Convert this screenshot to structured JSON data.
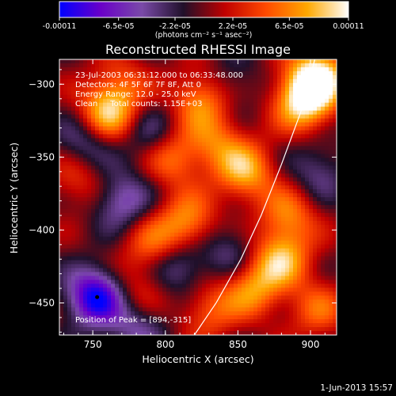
{
  "chart_data": {
    "type": "heatmap",
    "title": "Reconstructed RHESSI Image",
    "xlabel": "Heliocentric X (arcsec)",
    "ylabel": "Heliocentric Y (arcsec)",
    "xlim": [
      727,
      918
    ],
    "ylim": [
      -472,
      -283
    ],
    "x_ticks": [
      750,
      800,
      850,
      900
    ],
    "y_ticks": [
      -300,
      -350,
      -400,
      -450
    ],
    "colorbar": {
      "min": -0.00011,
      "max": 0.00011,
      "tick_labels": [
        "-0.00011",
        "-6.5e-05",
        "-2.2e-05",
        "2.2e-05",
        "6.5e-05",
        "0.00011"
      ],
      "unit_label": "(photons cm⁻² s⁻¹ asec⁻²)",
      "colormap": [
        "#0000ff",
        "#6a00c8",
        "#7a4aa8",
        "#20102a",
        "#c00000",
        "#ff4a00",
        "#ffa800",
        "#ffffff"
      ]
    },
    "annotations": [
      "23-Jul-2003 06:31:12.000 to 06:33:48.000",
      "Detectors: 4F 5F 6F 7F 8F, Att 0",
      "Energy Range: 12.0 - 25.0 keV",
      "Clean     Total counts: 1.15E+03"
    ],
    "peak_label": "Position of Peak = [894,-315]",
    "peak_position": [
      894,
      -315
    ],
    "marker": {
      "x": 753,
      "y": -446
    },
    "limb_curve": [
      [
        903,
        -283
      ],
      [
        893,
        -320
      ],
      [
        880,
        -355
      ],
      [
        866,
        -390
      ],
      [
        852,
        -420
      ],
      [
        835,
        -450
      ],
      [
        820,
        -472
      ]
    ],
    "bright_sources": [
      {
        "x": 905,
        "y": -295,
        "value": 0.00011
      },
      {
        "x": 895,
        "y": -312,
        "value": 0.0001
      },
      {
        "x": 760,
        "y": -320,
        "value": 9e-05
      },
      {
        "x": 855,
        "y": -360,
        "value": 8e-05
      },
      {
        "x": 825,
        "y": -310,
        "value": 7e-05
      },
      {
        "x": 880,
        "y": -420,
        "value": 8e-05
      },
      {
        "x": 860,
        "y": -440,
        "value": 7e-05
      },
      {
        "x": 805,
        "y": -350,
        "value": 6e-05
      },
      {
        "x": 815,
        "y": -395,
        "value": 7e-05
      },
      {
        "x": 790,
        "y": -410,
        "value": 5e-05
      },
      {
        "x": 770,
        "y": -300,
        "value": 4e-05
      },
      {
        "x": 835,
        "y": -340,
        "value": 5e-05
      },
      {
        "x": 885,
        "y": -390,
        "value": 6e-05
      },
      {
        "x": 830,
        "y": -455,
        "value": 5e-05
      },
      {
        "x": 740,
        "y": -365,
        "value": 4e-05
      },
      {
        "x": 780,
        "y": -445,
        "value": 4e-05
      },
      {
        "x": 905,
        "y": -455,
        "value": 5e-05
      }
    ],
    "dim_sources": [
      {
        "x": 752,
        "y": -446,
        "value": -0.00011
      },
      {
        "x": 770,
        "y": -380,
        "value": -6e-05
      },
      {
        "x": 745,
        "y": -340,
        "value": -5e-05
      },
      {
        "x": 810,
        "y": -425,
        "value": -5e-05
      },
      {
        "x": 790,
        "y": -335,
        "value": -4e-05
      },
      {
        "x": 845,
        "y": -415,
        "value": -4e-05
      },
      {
        "x": 780,
        "y": -465,
        "value": -5e-05
      },
      {
        "x": 905,
        "y": -360,
        "value": -4e-05
      },
      {
        "x": 845,
        "y": -300,
        "value": -3e-05
      }
    ]
  },
  "footer": {
    "date": "1-Jun-2013 15:57"
  }
}
